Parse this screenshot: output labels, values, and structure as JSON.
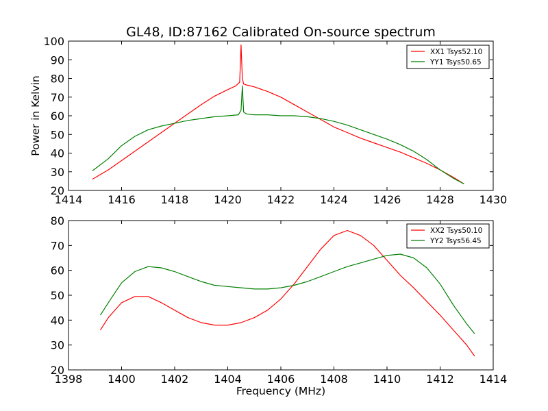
{
  "figure_title": "GL48, ID:87162 Calibrated On-source spectrum",
  "chart_data": [
    {
      "type": "line",
      "title": "GL48, ID:87162 Calibrated On-source spectrum",
      "xlabel": "",
      "ylabel": "Power in Kelvin",
      "xlim": [
        1414,
        1430
      ],
      "ylim": [
        20,
        100
      ],
      "x_ticks": [
        1414,
        1416,
        1418,
        1420,
        1422,
        1424,
        1426,
        1428,
        1430
      ],
      "y_ticks": [
        20,
        30,
        40,
        50,
        60,
        70,
        80,
        90,
        100
      ],
      "grid": false,
      "legend_position": "top-right",
      "series": [
        {
          "name": "XX1 Tsys52.10",
          "color": "#ff0000",
          "x": [
            1414.9,
            1415.5,
            1416.0,
            1416.5,
            1417.0,
            1417.5,
            1418.0,
            1418.5,
            1419.0,
            1419.5,
            1420.0,
            1420.3,
            1420.45,
            1420.5,
            1420.55,
            1420.6,
            1420.7,
            1421.0,
            1421.5,
            1422.0,
            1422.5,
            1423.0,
            1423.5,
            1424.0,
            1424.5,
            1425.0,
            1425.5,
            1426.0,
            1426.5,
            1427.0,
            1427.5,
            1428.0,
            1428.5,
            1428.9
          ],
          "y": [
            26,
            31,
            36,
            41,
            46,
            51,
            56,
            61,
            66,
            70.5,
            74,
            76,
            78,
            98,
            80,
            77,
            76.5,
            75.5,
            73,
            70,
            66,
            62,
            58,
            54,
            51,
            48,
            45.5,
            43,
            40.5,
            37.5,
            34.5,
            31,
            27,
            23.5
          ]
        },
        {
          "name": "YY1 Tsys50.65",
          "color": "#008000",
          "x": [
            1414.9,
            1415.5,
            1416.0,
            1416.5,
            1417.0,
            1417.5,
            1418.0,
            1418.5,
            1419.0,
            1419.5,
            1420.0,
            1420.4,
            1420.5,
            1420.55,
            1420.6,
            1420.7,
            1421.0,
            1421.5,
            1422.0,
            1422.5,
            1423.0,
            1423.5,
            1424.0,
            1424.5,
            1425.0,
            1425.5,
            1426.0,
            1426.5,
            1427.0,
            1427.5,
            1428.0,
            1428.5,
            1428.9
          ],
          "y": [
            30.5,
            37,
            44,
            49,
            52.5,
            54.5,
            56,
            57.5,
            58.5,
            59.5,
            60,
            60.5,
            63,
            76,
            62,
            61,
            60.5,
            60.5,
            60,
            60,
            59.5,
            58.5,
            57,
            55,
            52.5,
            50,
            47.5,
            44.5,
            41,
            36.5,
            31,
            26.5,
            23.5
          ]
        }
      ]
    },
    {
      "type": "line",
      "title": "",
      "xlabel": "Frequency (MHz)",
      "ylabel": "",
      "xlim": [
        1398,
        1414
      ],
      "ylim": [
        20,
        80
      ],
      "x_ticks": [
        1398,
        1400,
        1402,
        1404,
        1406,
        1408,
        1410,
        1412,
        1414
      ],
      "y_ticks": [
        20,
        30,
        40,
        50,
        60,
        70,
        80
      ],
      "grid": false,
      "legend_position": "top-right",
      "series": [
        {
          "name": "XX2 Tsys50.10",
          "color": "#ff0000",
          "x": [
            1399.2,
            1399.5,
            1400.0,
            1400.5,
            1401.0,
            1401.5,
            1402.0,
            1402.5,
            1403.0,
            1403.5,
            1404.0,
            1404.5,
            1405.0,
            1405.5,
            1406.0,
            1406.5,
            1407.0,
            1407.5,
            1408.0,
            1408.5,
            1409.0,
            1409.5,
            1410.0,
            1410.5,
            1411.0,
            1411.5,
            1412.0,
            1412.5,
            1413.0,
            1413.3
          ],
          "y": [
            36,
            41,
            47,
            49.5,
            49.5,
            47,
            44,
            41,
            39,
            38,
            38,
            39,
            41,
            44,
            48.5,
            54.5,
            61.5,
            68.5,
            74,
            76,
            74,
            70,
            64,
            58,
            53,
            47.5,
            42,
            36,
            30,
            25.5
          ]
        },
        {
          "name": "YY2 Tsys56.45",
          "color": "#008000",
          "x": [
            1399.2,
            1399.5,
            1400.0,
            1400.5,
            1401.0,
            1401.5,
            1402.0,
            1402.5,
            1403.0,
            1403.5,
            1404.0,
            1404.5,
            1405.0,
            1405.5,
            1406.0,
            1406.5,
            1407.0,
            1407.5,
            1408.0,
            1408.5,
            1409.0,
            1409.5,
            1410.0,
            1410.5,
            1411.0,
            1411.5,
            1412.0,
            1412.5,
            1413.0,
            1413.3
          ],
          "y": [
            42,
            47,
            55,
            59.5,
            61.5,
            61,
            59.5,
            57.5,
            55.5,
            54,
            53.5,
            53,
            52.5,
            52.5,
            53,
            54,
            55.5,
            57.5,
            59.5,
            61.5,
            63,
            64.5,
            66,
            66.5,
            65,
            61,
            54.5,
            46,
            38.5,
            34.5
          ]
        }
      ]
    }
  ]
}
